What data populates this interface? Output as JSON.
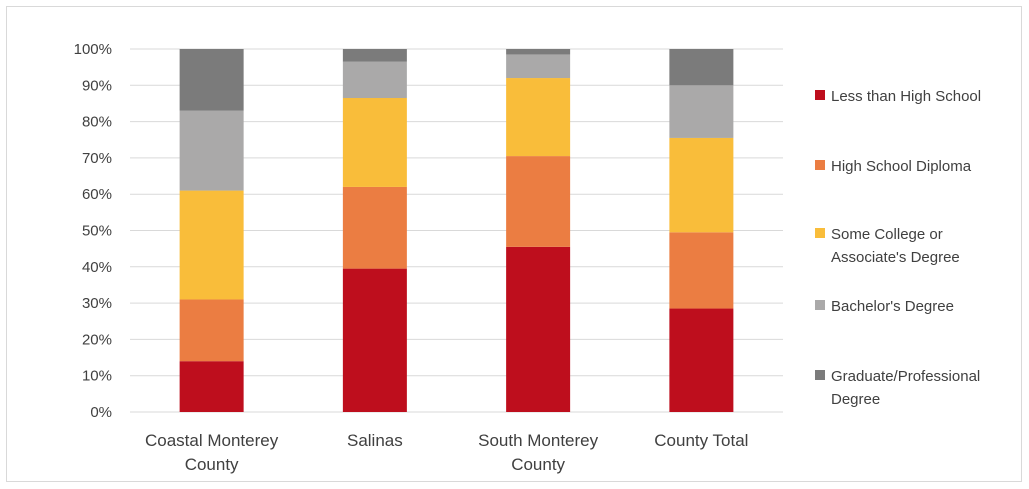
{
  "chart_data": {
    "type": "bar",
    "stacked": true,
    "categories": [
      [
        "Coastal Monterey",
        "County"
      ],
      [
        "Salinas"
      ],
      [
        "South Monterey",
        "County"
      ],
      [
        "County Total"
      ]
    ],
    "series": [
      {
        "name": "Less than High School",
        "color": "#be0e1d",
        "values": [
          14,
          39.5,
          45.5,
          28.5
        ]
      },
      {
        "name": "High School Diploma",
        "color": "#eb7d42",
        "values": [
          17,
          22.5,
          25,
          21
        ]
      },
      {
        "name": "Some College or Associate's Degree",
        "color": "#f9bd3a",
        "values": [
          30,
          24.5,
          21.5,
          26
        ]
      },
      {
        "name": "Bachelor's Degree",
        "color": "#aaa9a9",
        "values": [
          22,
          10,
          6.5,
          14.5
        ]
      },
      {
        "name": "Graduate/Professional Degree",
        "color": "#7b7b7b",
        "values": [
          17,
          3.5,
          1.5,
          10
        ]
      }
    ],
    "legend_lines": [
      [
        "Less than High School"
      ],
      [
        "High School Diploma"
      ],
      [
        "Some College or",
        "Associate's Degree"
      ],
      [
        "Bachelor's Degree"
      ],
      [
        "Graduate/Professional",
        "Degree"
      ]
    ],
    "y_ticks": [
      "0%",
      "10%",
      "20%",
      "30%",
      "40%",
      "50%",
      "60%",
      "70%",
      "80%",
      "90%",
      "100%"
    ],
    "ylim": [
      0,
      100
    ],
    "grid": true,
    "legend_position": "right"
  }
}
